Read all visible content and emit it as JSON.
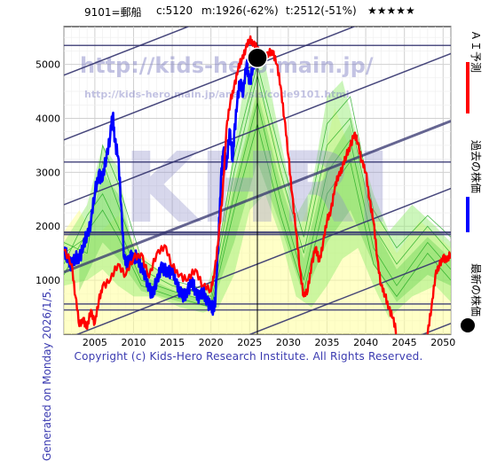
{
  "header": {
    "ticker": "9101=郵船",
    "close": "c:5120",
    "m_value": "m:1926(-62%)",
    "t_value": "t:2512(-51%)",
    "stars": "★★★★★"
  },
  "watermark": {
    "url_large": "http://kids-hero.main.jp/",
    "url_small": "http://kids-hero.main.jp/analysis/code9101.html",
    "logo": "KHRI"
  },
  "side_label_left": "Generated on Monday 2026/1/5.",
  "legend": {
    "ai_forecast": "ＡＩ予測",
    "past_price": "過去の株価",
    "latest_price": "最新の株価",
    "ai_color": "#ff0000",
    "past_color": "#0000ff",
    "latest_color": "#000000"
  },
  "footer": "Copyright (c) Kids-Hero Research Institute. All Rights Reserved.",
  "chart_data": {
    "type": "line",
    "xlim": [
      2001,
      2051
    ],
    "ylim": [
      0,
      5700
    ],
    "x_ticks": [
      2005,
      2010,
      2015,
      2020,
      2025,
      2030,
      2035,
      2040,
      2045,
      2050
    ],
    "y_ticks": [
      1000,
      2000,
      3000,
      4000,
      5000
    ],
    "grid": true,
    "latest_point": {
      "x": 2026.0,
      "y": 5120
    },
    "horizontal_levels": [
      5350,
      3190,
      1890,
      1850,
      560,
      450
    ],
    "series": [
      {
        "name": "過去の株価",
        "color": "#0000ff",
        "points": [
          [
            2001.0,
            1500
          ],
          [
            2001.5,
            1420
          ],
          [
            2002.0,
            1300
          ],
          [
            2002.5,
            1380
          ],
          [
            2003.0,
            1450
          ],
          [
            2003.5,
            1600
          ],
          [
            2004.0,
            1850
          ],
          [
            2004.5,
            2100
          ],
          [
            2005.0,
            2600
          ],
          [
            2005.5,
            3000
          ],
          [
            2006.0,
            2850
          ],
          [
            2006.5,
            3300
          ],
          [
            2007.0,
            3700
          ],
          [
            2007.3,
            4050
          ],
          [
            2007.6,
            3600
          ],
          [
            2008.0,
            3300
          ],
          [
            2008.4,
            2400
          ],
          [
            2008.8,
            1400
          ],
          [
            2009.2,
            1250
          ],
          [
            2009.6,
            1500
          ],
          [
            2010.0,
            1350
          ],
          [
            2010.5,
            1450
          ],
          [
            2011.0,
            1250
          ],
          [
            2011.5,
            1050
          ],
          [
            2012.0,
            900
          ],
          [
            2012.5,
            700
          ],
          [
            2013.0,
            1000
          ],
          [
            2013.5,
            1250
          ],
          [
            2014.0,
            1150
          ],
          [
            2014.5,
            1200
          ],
          [
            2015.0,
            1150
          ],
          [
            2015.5,
            1000
          ],
          [
            2016.0,
            800
          ],
          [
            2016.5,
            650
          ],
          [
            2017.0,
            850
          ],
          [
            2017.5,
            950
          ],
          [
            2018.0,
            800
          ],
          [
            2018.5,
            700
          ],
          [
            2019.0,
            750
          ],
          [
            2019.5,
            650
          ],
          [
            2020.0,
            500
          ],
          [
            2020.3,
            450
          ],
          [
            2020.6,
            700
          ],
          [
            2021.0,
            1800
          ],
          [
            2021.3,
            2900
          ],
          [
            2021.6,
            3400
          ],
          [
            2022.0,
            3100
          ],
          [
            2022.4,
            3800
          ],
          [
            2022.8,
            3200
          ],
          [
            2023.0,
            3700
          ],
          [
            2023.4,
            4300
          ],
          [
            2023.8,
            4700
          ],
          [
            2024.2,
            4500
          ],
          [
            2024.6,
            5000
          ],
          [
            2025.0,
            4700
          ],
          [
            2025.4,
            4900
          ],
          [
            2025.8,
            5150
          ],
          [
            2026.0,
            5120
          ]
        ]
      },
      {
        "name": "ＡＩ予測",
        "color": "#ff0000",
        "points": [
          [
            2001.0,
            1550
          ],
          [
            2002.0,
            1300
          ],
          [
            2002.5,
            700
          ],
          [
            2003.0,
            150
          ],
          [
            2003.5,
            300
          ],
          [
            2004.0,
            100
          ],
          [
            2004.5,
            450
          ],
          [
            2005.0,
            200
          ],
          [
            2005.5,
            600
          ],
          [
            2006.0,
            900
          ],
          [
            2007.0,
            1000
          ],
          [
            2008.0,
            1300
          ],
          [
            2009.0,
            1100
          ],
          [
            2010.0,
            1400
          ],
          [
            2011.0,
            1500
          ],
          [
            2012.0,
            1050
          ],
          [
            2013.0,
            1500
          ],
          [
            2014.0,
            1650
          ],
          [
            2015.0,
            1250
          ],
          [
            2016.0,
            1100
          ],
          [
            2017.0,
            1000
          ],
          [
            2018.0,
            1200
          ],
          [
            2019.0,
            900
          ],
          [
            2020.0,
            800
          ],
          [
            2020.5,
            1200
          ],
          [
            2021.0,
            1800
          ],
          [
            2021.5,
            2600
          ],
          [
            2022.0,
            3800
          ],
          [
            2022.5,
            4300
          ],
          [
            2023.0,
            4600
          ],
          [
            2023.5,
            4900
          ],
          [
            2024.0,
            5100
          ],
          [
            2024.5,
            5300
          ],
          [
            2025.0,
            5450
          ],
          [
            2025.5,
            5400
          ],
          [
            2026.0,
            5300
          ],
          [
            2026.5,
            5050
          ],
          [
            2027.0,
            5100
          ],
          [
            2027.5,
            5200
          ],
          [
            2028.0,
            5250
          ],
          [
            2028.5,
            5000
          ],
          [
            2029.0,
            4600
          ],
          [
            2029.5,
            4000
          ],
          [
            2030.0,
            3300
          ],
          [
            2030.5,
            2600
          ],
          [
            2031.0,
            1900
          ],
          [
            2031.5,
            1200
          ],
          [
            2032.0,
            700
          ],
          [
            2032.5,
            800
          ],
          [
            2033.0,
            1300
          ],
          [
            2033.5,
            1600
          ],
          [
            2034.0,
            1350
          ],
          [
            2034.5,
            1700
          ],
          [
            2035.0,
            2100
          ],
          [
            2035.5,
            2300
          ],
          [
            2036.0,
            2700
          ],
          [
            2036.5,
            2950
          ],
          [
            2037.0,
            3100
          ],
          [
            2037.5,
            3300
          ],
          [
            2038.0,
            3500
          ],
          [
            2038.5,
            3700
          ],
          [
            2039.0,
            3550
          ],
          [
            2039.5,
            3200
          ],
          [
            2040.0,
            3000
          ],
          [
            2040.5,
            2500
          ],
          [
            2041.0,
            2100
          ],
          [
            2041.5,
            1400
          ],
          [
            2042.0,
            900
          ],
          [
            2042.5,
            700
          ],
          [
            2043.0,
            500
          ],
          [
            2043.5,
            300
          ],
          [
            2044.0,
            0
          ]
        ]
      },
      {
        "name": "ＡＩ予測 (2048-)",
        "color": "#ff0000",
        "points": [
          [
            2048.0,
            0
          ],
          [
            2048.5,
            500
          ],
          [
            2049.0,
            1100
          ],
          [
            2049.5,
            1250
          ],
          [
            2050.0,
            1450
          ],
          [
            2050.5,
            1350
          ],
          [
            2051.0,
            1500
          ]
        ]
      }
    ]
  }
}
